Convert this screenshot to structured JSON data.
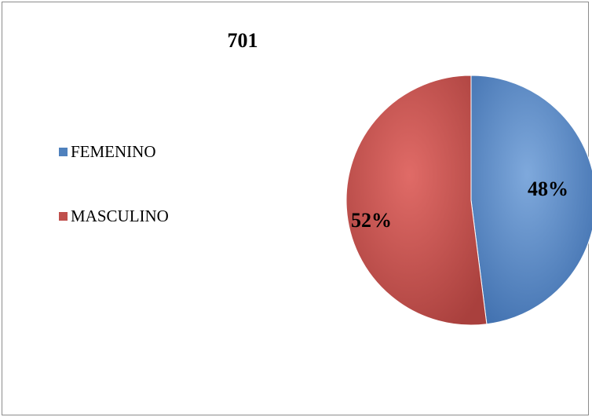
{
  "chart_data": {
    "type": "pie",
    "title": "701",
    "categories": [
      "FEMENINO",
      "MASCULINO"
    ],
    "values": [
      48,
      52
    ],
    "data_labels": [
      "48%",
      "52%"
    ],
    "colors": [
      "#4f81bd",
      "#c0504d"
    ],
    "legend_position": "left"
  }
}
